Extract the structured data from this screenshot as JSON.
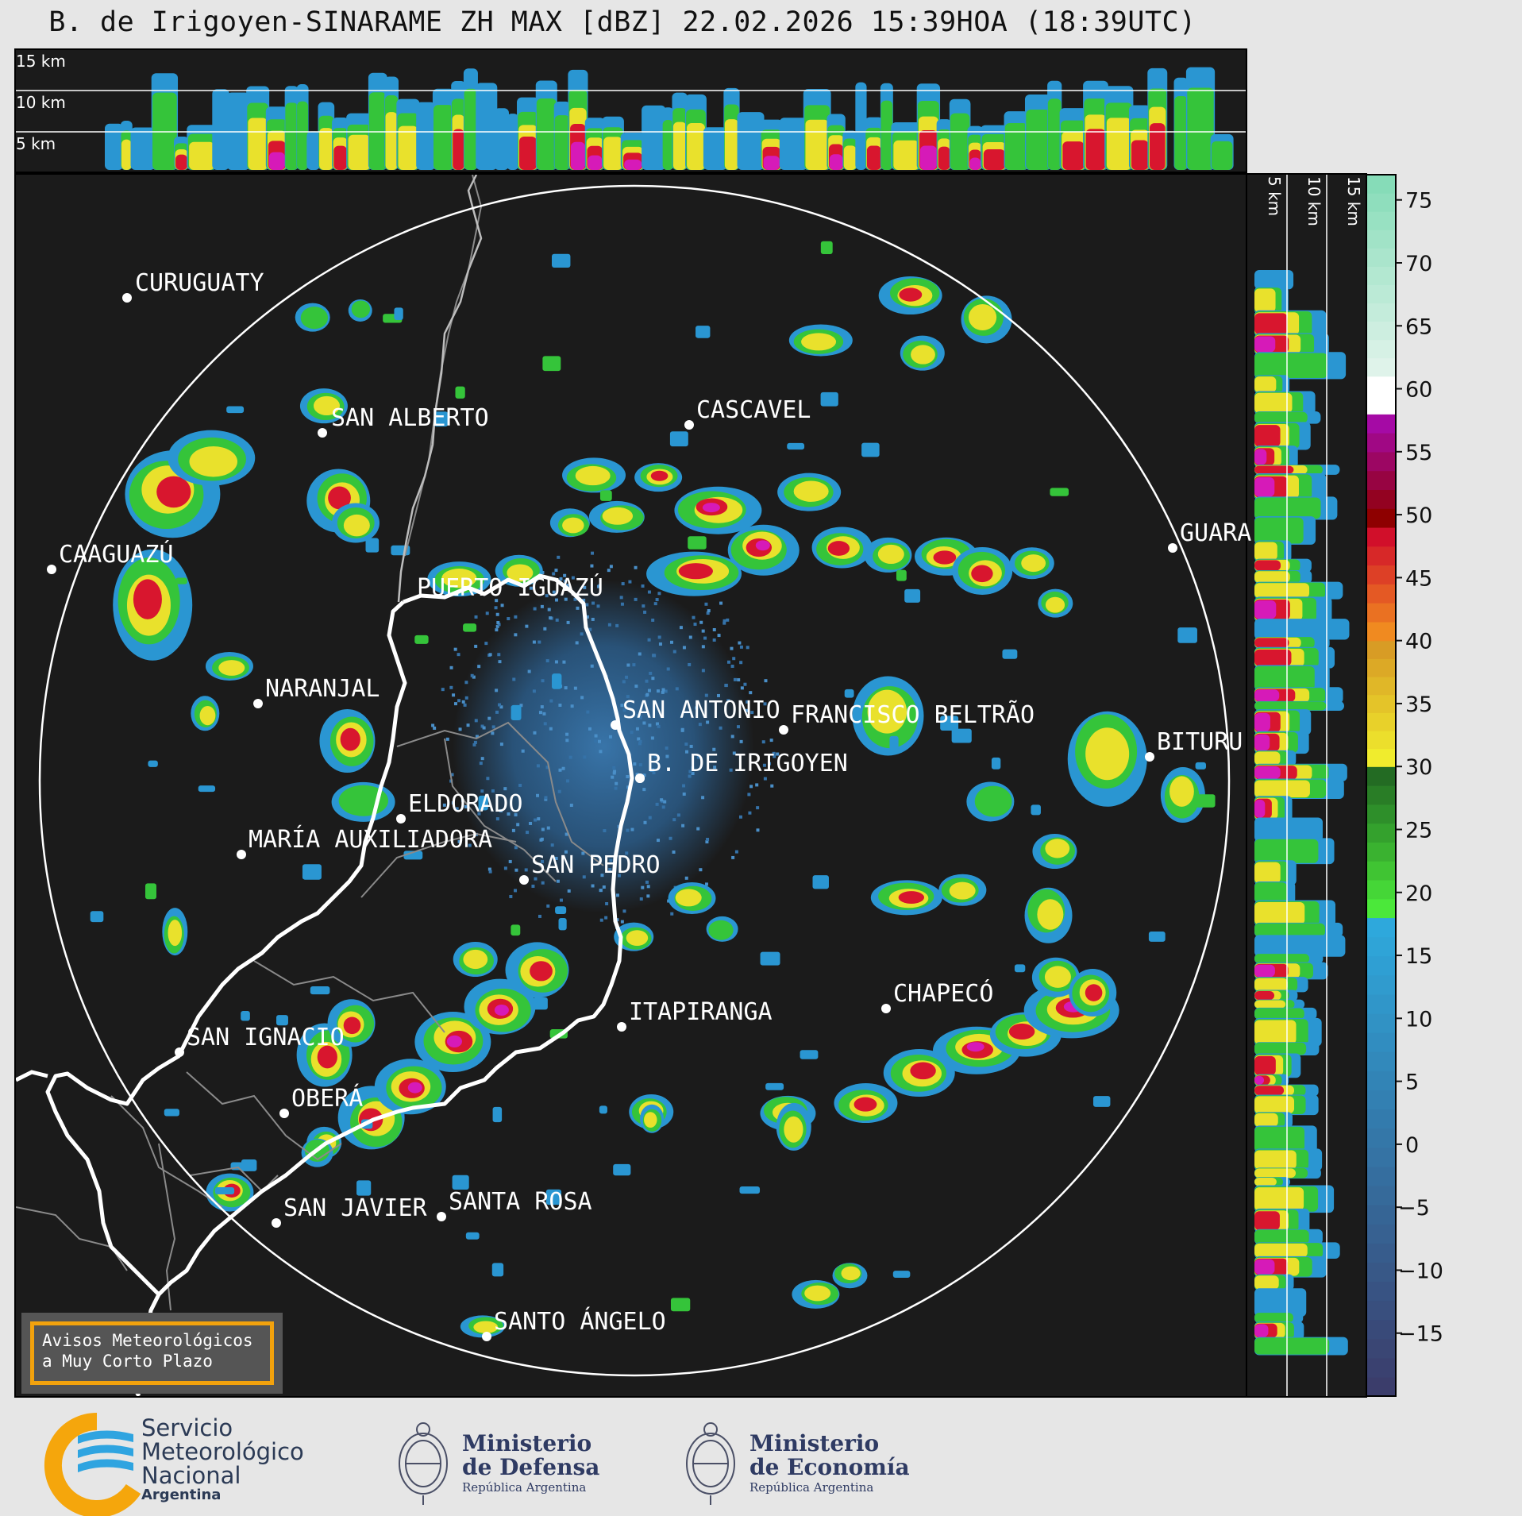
{
  "title": "B. de Irigoyen-SINARAME ZH MAX [dBZ] 22.02.2026 15:39HOA (18:39UTC)",
  "top_panel_labels": [
    "15 km",
    "10 km",
    "5 km"
  ],
  "side_panel_labels": [
    "5 km",
    "10 km",
    "15 km"
  ],
  "cities": [
    {
      "name": "CURUGUATY"
    },
    {
      "name": "SAN ALBERTO"
    },
    {
      "name": "CASCAVEL"
    },
    {
      "name": "CAAGUAZÚ"
    },
    {
      "name": "GUARA"
    },
    {
      "name": "PUERTO IGUAZÚ"
    },
    {
      "name": "NARANJAL"
    },
    {
      "name": "SAN ANTONIO"
    },
    {
      "name": "FRANCISCO BELTRÃO"
    },
    {
      "name": "B. DE IRIGOYEN"
    },
    {
      "name": "BITURU"
    },
    {
      "name": "ELDORADO"
    },
    {
      "name": "MARÍA AUXILIADORA"
    },
    {
      "name": "SAN PEDRO"
    },
    {
      "name": "CHAPECÓ"
    },
    {
      "name": "ITAPIRANGA"
    },
    {
      "name": "SAN IGNACIO"
    },
    {
      "name": "OBERÁ"
    },
    {
      "name": "SAN JAVIER"
    },
    {
      "name": "SANTA ROSA"
    },
    {
      "name": "SANTO ÁNGELO"
    }
  ],
  "colorbar": {
    "unit": "dBZ",
    "ticks": [
      "75",
      "70",
      "65",
      "60",
      "55",
      "50",
      "45",
      "40",
      "35",
      "30",
      "25",
      "20",
      "15",
      "10",
      "5",
      "0",
      "−5",
      "−10",
      "−15"
    ],
    "bands": [
      {
        "from": -20,
        "to": 18,
        "color_low": "#3b3d6b",
        "color_high": "#2ea8dc"
      },
      {
        "from": 18,
        "to": 30,
        "color_low": "#4be83a",
        "color_high": "#236b23"
      },
      {
        "from": 30,
        "to": 40,
        "color_low": "#f0ec2d",
        "color_high": "#d89c25"
      },
      {
        "from": 40,
        "to": 49,
        "color_low": "#f08a20",
        "color_high": "#d10f2a"
      },
      {
        "from": 49,
        "to": 58,
        "color_low": "#8e0000",
        "color_high": "#a50aa5"
      },
      {
        "from": 58,
        "to": 61,
        "color_low": "#ffffff",
        "color_high": "#ffffff"
      },
      {
        "from": 61,
        "to": 77,
        "color_low": "#dff3ea",
        "color_high": "#86dcb8"
      }
    ]
  },
  "warning_box": {
    "line1": "Avisos Meteorológicos",
    "line2": "a Muy Corto Plazo"
  },
  "logos": {
    "smn": {
      "line1": "Servicio",
      "line2": "Meteorológico",
      "line3": "Nacional",
      "line4": "Argentina",
      "icon": "smn-logo-icon"
    },
    "defensa": {
      "line1": "Ministerio",
      "line2": "de Defensa",
      "line3": "República Argentina",
      "icon": "coat-of-arms-icon"
    },
    "economia": {
      "line1": "Ministerio",
      "line2": "de Economía",
      "line3": "República Argentina",
      "icon": "coat-of-arms-icon"
    }
  },
  "colors": {
    "map_background": "#1b1b1b",
    "range_ring": "#ffffff",
    "border_international": "#ffffff",
    "border_provincial": "#8a8a8a"
  }
}
